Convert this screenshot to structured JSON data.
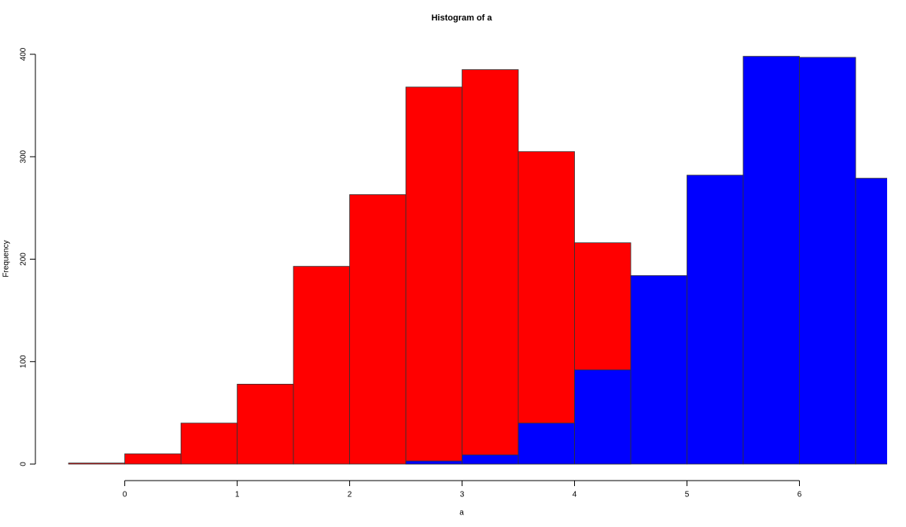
{
  "chart_data": {
    "type": "histogram",
    "title": "Histogram of a",
    "x_label": "a",
    "y_label": "Frequency",
    "series": [
      {
        "color": "#ff0000",
        "bins": [
          -0.5,
          0,
          0.5,
          1,
          1.5,
          2,
          2.5,
          3,
          3.5,
          4,
          4.5
        ],
        "values": [
          1,
          10,
          40,
          78,
          193,
          263,
          368,
          385,
          305,
          216
        ]
      },
      {
        "color": "#0000ff",
        "bins": [
          2.5,
          3,
          3.5,
          4,
          4.5,
          5,
          5.5,
          6,
          6.5,
          7
        ],
        "values": [
          3,
          9,
          40,
          92,
          184,
          282,
          398,
          397,
          279
        ]
      }
    ],
    "xlim": [
      -0.55,
      6.78
    ],
    "ylim": [
      0,
      400
    ],
    "xticks": [
      0,
      1,
      2,
      3,
      4,
      5,
      6
    ],
    "yticks": [
      0,
      100,
      200,
      300,
      400
    ]
  }
}
